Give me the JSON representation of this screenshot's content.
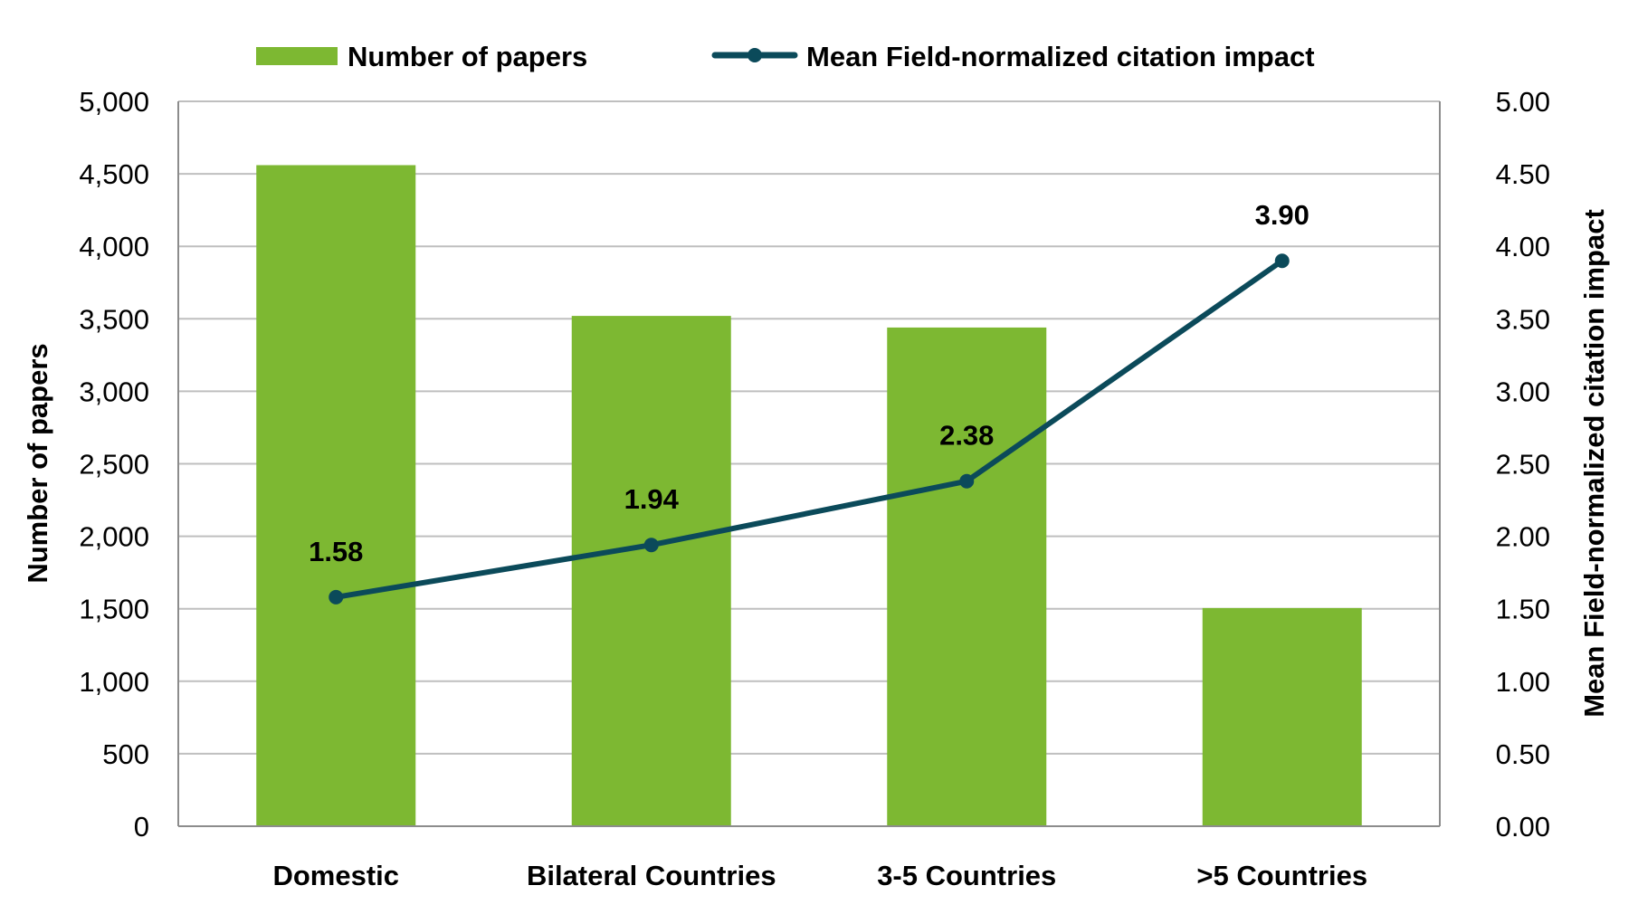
{
  "chart_data": {
    "type": "bar+line",
    "title": "",
    "categories": [
      "Domestic",
      "Bilateral Countries",
      "3-5 Countries",
      ">5 Countries"
    ],
    "series": [
      {
        "name": "Number of papers",
        "type": "bar",
        "axis": "left",
        "color": "#7db832",
        "values": [
          4560,
          3520,
          3440,
          1505
        ]
      },
      {
        "name": "Mean Field-normalized citation impact",
        "type": "line",
        "axis": "right",
        "color": "#0b4a5a",
        "values": [
          1.58,
          1.94,
          2.38,
          3.9
        ],
        "data_labels": [
          "1.58",
          "1.94",
          "2.38",
          "3.90"
        ]
      }
    ],
    "xlabel": "",
    "ylabel": "Number of papers",
    "y2label": "Mean Field-normalized citation impact",
    "ylim": [
      0,
      5000
    ],
    "y2lim": [
      0,
      5
    ],
    "yticks": [
      "0",
      "500",
      "1,000",
      "1,500",
      "2,000",
      "2,500",
      "3,000",
      "3,500",
      "4,000",
      "4,500",
      "5,000"
    ],
    "y2ticks": [
      "0.00",
      "0.50",
      "1.00",
      "1.50",
      "2.00",
      "2.50",
      "3.00",
      "3.50",
      "4.00",
      "4.50",
      "5.00"
    ],
    "grid": true,
    "legend_position": "top"
  },
  "legend": {
    "bar_label": "Number of papers",
    "line_label": "Mean Field-normalized citation impact"
  },
  "axes": {
    "left_title": "Number of papers",
    "right_title": "Mean Field-normalized citation impact"
  },
  "colors": {
    "bar": "#7db832",
    "line": "#0b4a5a",
    "grid": "#bfbfbf",
    "axis": "#8c8c8c"
  }
}
